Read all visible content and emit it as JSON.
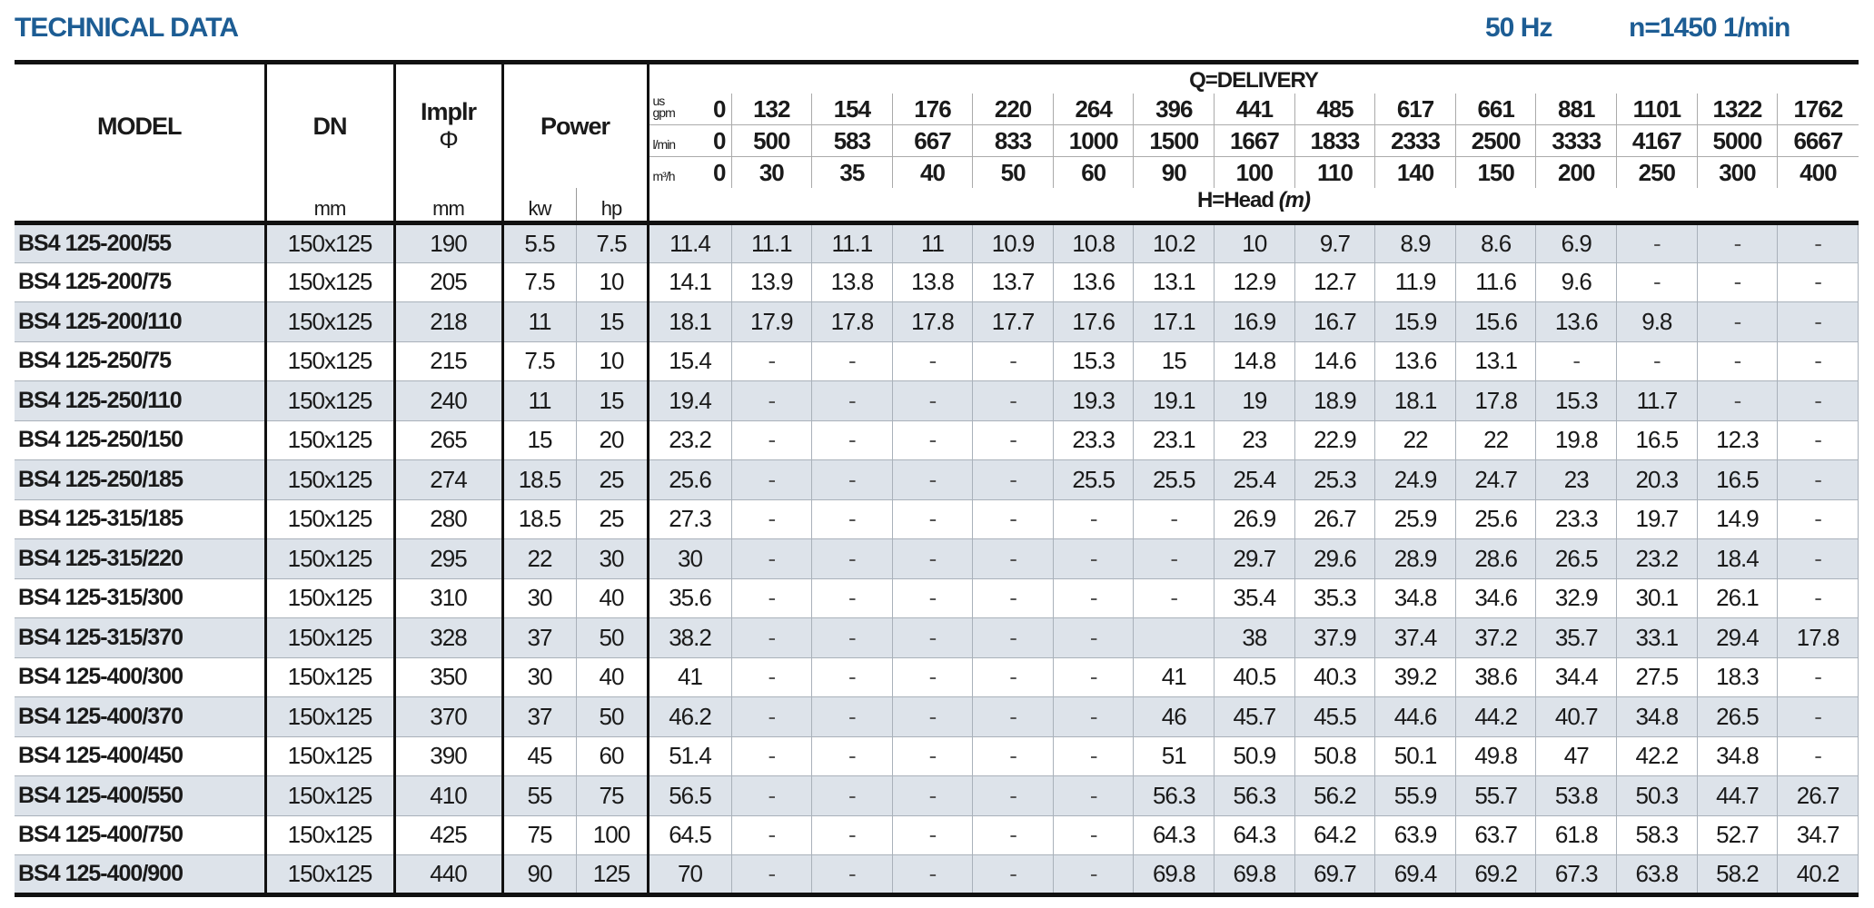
{
  "header": {
    "title": "TECHNICAL DATA",
    "frequency": "50 Hz",
    "speed": "n=1450 1/min"
  },
  "columns": {
    "model": "MODEL",
    "dn": "DN",
    "impeller": "Implr",
    "impeller_symbol": "Φ",
    "power": "Power",
    "dn_unit": "mm",
    "impeller_unit": "mm",
    "kw": "kw",
    "hp": "hp",
    "delivery": "Q=DELIVERY",
    "head": "H=Head",
    "head_unit": "(m)",
    "flow_units": [
      {
        "unit_top": "us",
        "unit": "gpm",
        "values": [
          "0",
          "132",
          "154",
          "176",
          "220",
          "264",
          "396",
          "441",
          "485",
          "617",
          "661",
          "881",
          "1101",
          "1322",
          "1762"
        ]
      },
      {
        "unit_top": "",
        "unit": "l/min",
        "values": [
          "0",
          "500",
          "583",
          "667",
          "833",
          "1000",
          "1500",
          "1667",
          "1833",
          "2333",
          "2500",
          "3333",
          "4167",
          "5000",
          "6667"
        ]
      },
      {
        "unit_top": "",
        "unit": "m³/h",
        "values": [
          "0",
          "30",
          "35",
          "40",
          "50",
          "60",
          "90",
          "100",
          "110",
          "140",
          "150",
          "200",
          "250",
          "300",
          "400"
        ]
      }
    ]
  },
  "rows": [
    {
      "model": "BS4 125-200/55",
      "dn": "150x125",
      "impeller": "190",
      "kw": "5.5",
      "hp": "7.5",
      "head": [
        "11.4",
        "11.1",
        "11.1",
        "11",
        "10.9",
        "10.8",
        "10.2",
        "10",
        "9.7",
        "8.9",
        "8.6",
        "6.9",
        "-",
        "-",
        "-"
      ]
    },
    {
      "model": "BS4 125-200/75",
      "dn": "150x125",
      "impeller": "205",
      "kw": "7.5",
      "hp": "10",
      "head": [
        "14.1",
        "13.9",
        "13.8",
        "13.8",
        "13.7",
        "13.6",
        "13.1",
        "12.9",
        "12.7",
        "11.9",
        "11.6",
        "9.6",
        "-",
        "-",
        "-"
      ]
    },
    {
      "model": "BS4 125-200/110",
      "dn": "150x125",
      "impeller": "218",
      "kw": "11",
      "hp": "15",
      "head": [
        "18.1",
        "17.9",
        "17.8",
        "17.8",
        "17.7",
        "17.6",
        "17.1",
        "16.9",
        "16.7",
        "15.9",
        "15.6",
        "13.6",
        "9.8",
        "-",
        "-"
      ]
    },
    {
      "model": "BS4 125-250/75",
      "dn": "150x125",
      "impeller": "215",
      "kw": "7.5",
      "hp": "10",
      "head": [
        "15.4",
        "-",
        "-",
        "-",
        "-",
        "15.3",
        "15",
        "14.8",
        "14.6",
        "13.6",
        "13.1",
        "-",
        "-",
        "-",
        "-"
      ]
    },
    {
      "model": "BS4 125-250/110",
      "dn": "150x125",
      "impeller": "240",
      "kw": "11",
      "hp": "15",
      "head": [
        "19.4",
        "-",
        "-",
        "-",
        "-",
        "19.3",
        "19.1",
        "19",
        "18.9",
        "18.1",
        "17.8",
        "15.3",
        "11.7",
        "-",
        "-"
      ]
    },
    {
      "model": "BS4 125-250/150",
      "dn": "150x125",
      "impeller": "265",
      "kw": "15",
      "hp": "20",
      "head": [
        "23.2",
        "-",
        "-",
        "-",
        "-",
        "23.3",
        "23.1",
        "23",
        "22.9",
        "22",
        "22",
        "19.8",
        "16.5",
        "12.3",
        "-"
      ]
    },
    {
      "model": "BS4 125-250/185",
      "dn": "150x125",
      "impeller": "274",
      "kw": "18.5",
      "hp": "25",
      "head": [
        "25.6",
        "-",
        "-",
        "-",
        "-",
        "25.5",
        "25.5",
        "25.4",
        "25.3",
        "24.9",
        "24.7",
        "23",
        "20.3",
        "16.5",
        "-"
      ]
    },
    {
      "model": "BS4 125-315/185",
      "dn": "150x125",
      "impeller": "280",
      "kw": "18.5",
      "hp": "25",
      "head": [
        "27.3",
        "-",
        "-",
        "-",
        "-",
        "-",
        "-",
        "26.9",
        "26.7",
        "25.9",
        "25.6",
        "23.3",
        "19.7",
        "14.9",
        "-"
      ]
    },
    {
      "model": "BS4 125-315/220",
      "dn": "150x125",
      "impeller": "295",
      "kw": "22",
      "hp": "30",
      "head": [
        "30",
        "-",
        "-",
        "-",
        "-",
        "-",
        "-",
        "29.7",
        "29.6",
        "28.9",
        "28.6",
        "26.5",
        "23.2",
        "18.4",
        "-"
      ]
    },
    {
      "model": "BS4 125-315/300",
      "dn": "150x125",
      "impeller": "310",
      "kw": "30",
      "hp": "40",
      "head": [
        "35.6",
        "-",
        "-",
        "-",
        "-",
        "-",
        "-",
        "35.4",
        "35.3",
        "34.8",
        "34.6",
        "32.9",
        "30.1",
        "26.1",
        "-"
      ]
    },
    {
      "model": "BS4 125-315/370",
      "dn": "150x125",
      "impeller": "328",
      "kw": "37",
      "hp": "50",
      "head": [
        "38.2",
        "-",
        "-",
        "-",
        "-",
        "-",
        "",
        "38",
        "37.9",
        "37.4",
        "37.2",
        "35.7",
        "33.1",
        "29.4",
        "17.8"
      ]
    },
    {
      "model": "BS4 125-400/300",
      "dn": "150x125",
      "impeller": "350",
      "kw": "30",
      "hp": "40",
      "head": [
        "41",
        "-",
        "-",
        "-",
        "-",
        "-",
        "41",
        "40.5",
        "40.3",
        "39.2",
        "38.6",
        "34.4",
        "27.5",
        "18.3",
        "-"
      ]
    },
    {
      "model": "BS4 125-400/370",
      "dn": "150x125",
      "impeller": "370",
      "kw": "37",
      "hp": "50",
      "head": [
        "46.2",
        "-",
        "-",
        "-",
        "-",
        "-",
        "46",
        "45.7",
        "45.5",
        "44.6",
        "44.2",
        "40.7",
        "34.8",
        "26.5",
        "-"
      ]
    },
    {
      "model": "BS4 125-400/450",
      "dn": "150x125",
      "impeller": "390",
      "kw": "45",
      "hp": "60",
      "head": [
        "51.4",
        "-",
        "-",
        "-",
        "-",
        "-",
        "51",
        "50.9",
        "50.8",
        "50.1",
        "49.8",
        "47",
        "42.2",
        "34.8",
        "-"
      ]
    },
    {
      "model": "BS4 125-400/550",
      "dn": "150x125",
      "impeller": "410",
      "kw": "55",
      "hp": "75",
      "head": [
        "56.5",
        "-",
        "-",
        "-",
        "-",
        "-",
        "56.3",
        "56.3",
        "56.2",
        "55.9",
        "55.7",
        "53.8",
        "50.3",
        "44.7",
        "26.7"
      ]
    },
    {
      "model": "BS4 125-400/750",
      "dn": "150x125",
      "impeller": "425",
      "kw": "75",
      "hp": "100",
      "head": [
        "64.5",
        "-",
        "-",
        "-",
        "-",
        "-",
        "64.3",
        "64.3",
        "64.2",
        "63.9",
        "63.7",
        "61.8",
        "58.3",
        "52.7",
        "34.7"
      ]
    },
    {
      "model": "BS4 125-400/900",
      "dn": "150x125",
      "impeller": "440",
      "kw": "90",
      "hp": "125",
      "head": [
        "70",
        "-",
        "-",
        "-",
        "-",
        "-",
        "69.8",
        "69.8",
        "69.7",
        "69.4",
        "69.2",
        "67.3",
        "63.8",
        "58.2",
        "40.2"
      ]
    }
  ],
  "colors": {
    "title": "#1d5d94",
    "row_shade": "#dde3ea",
    "rule": "#111111"
  }
}
